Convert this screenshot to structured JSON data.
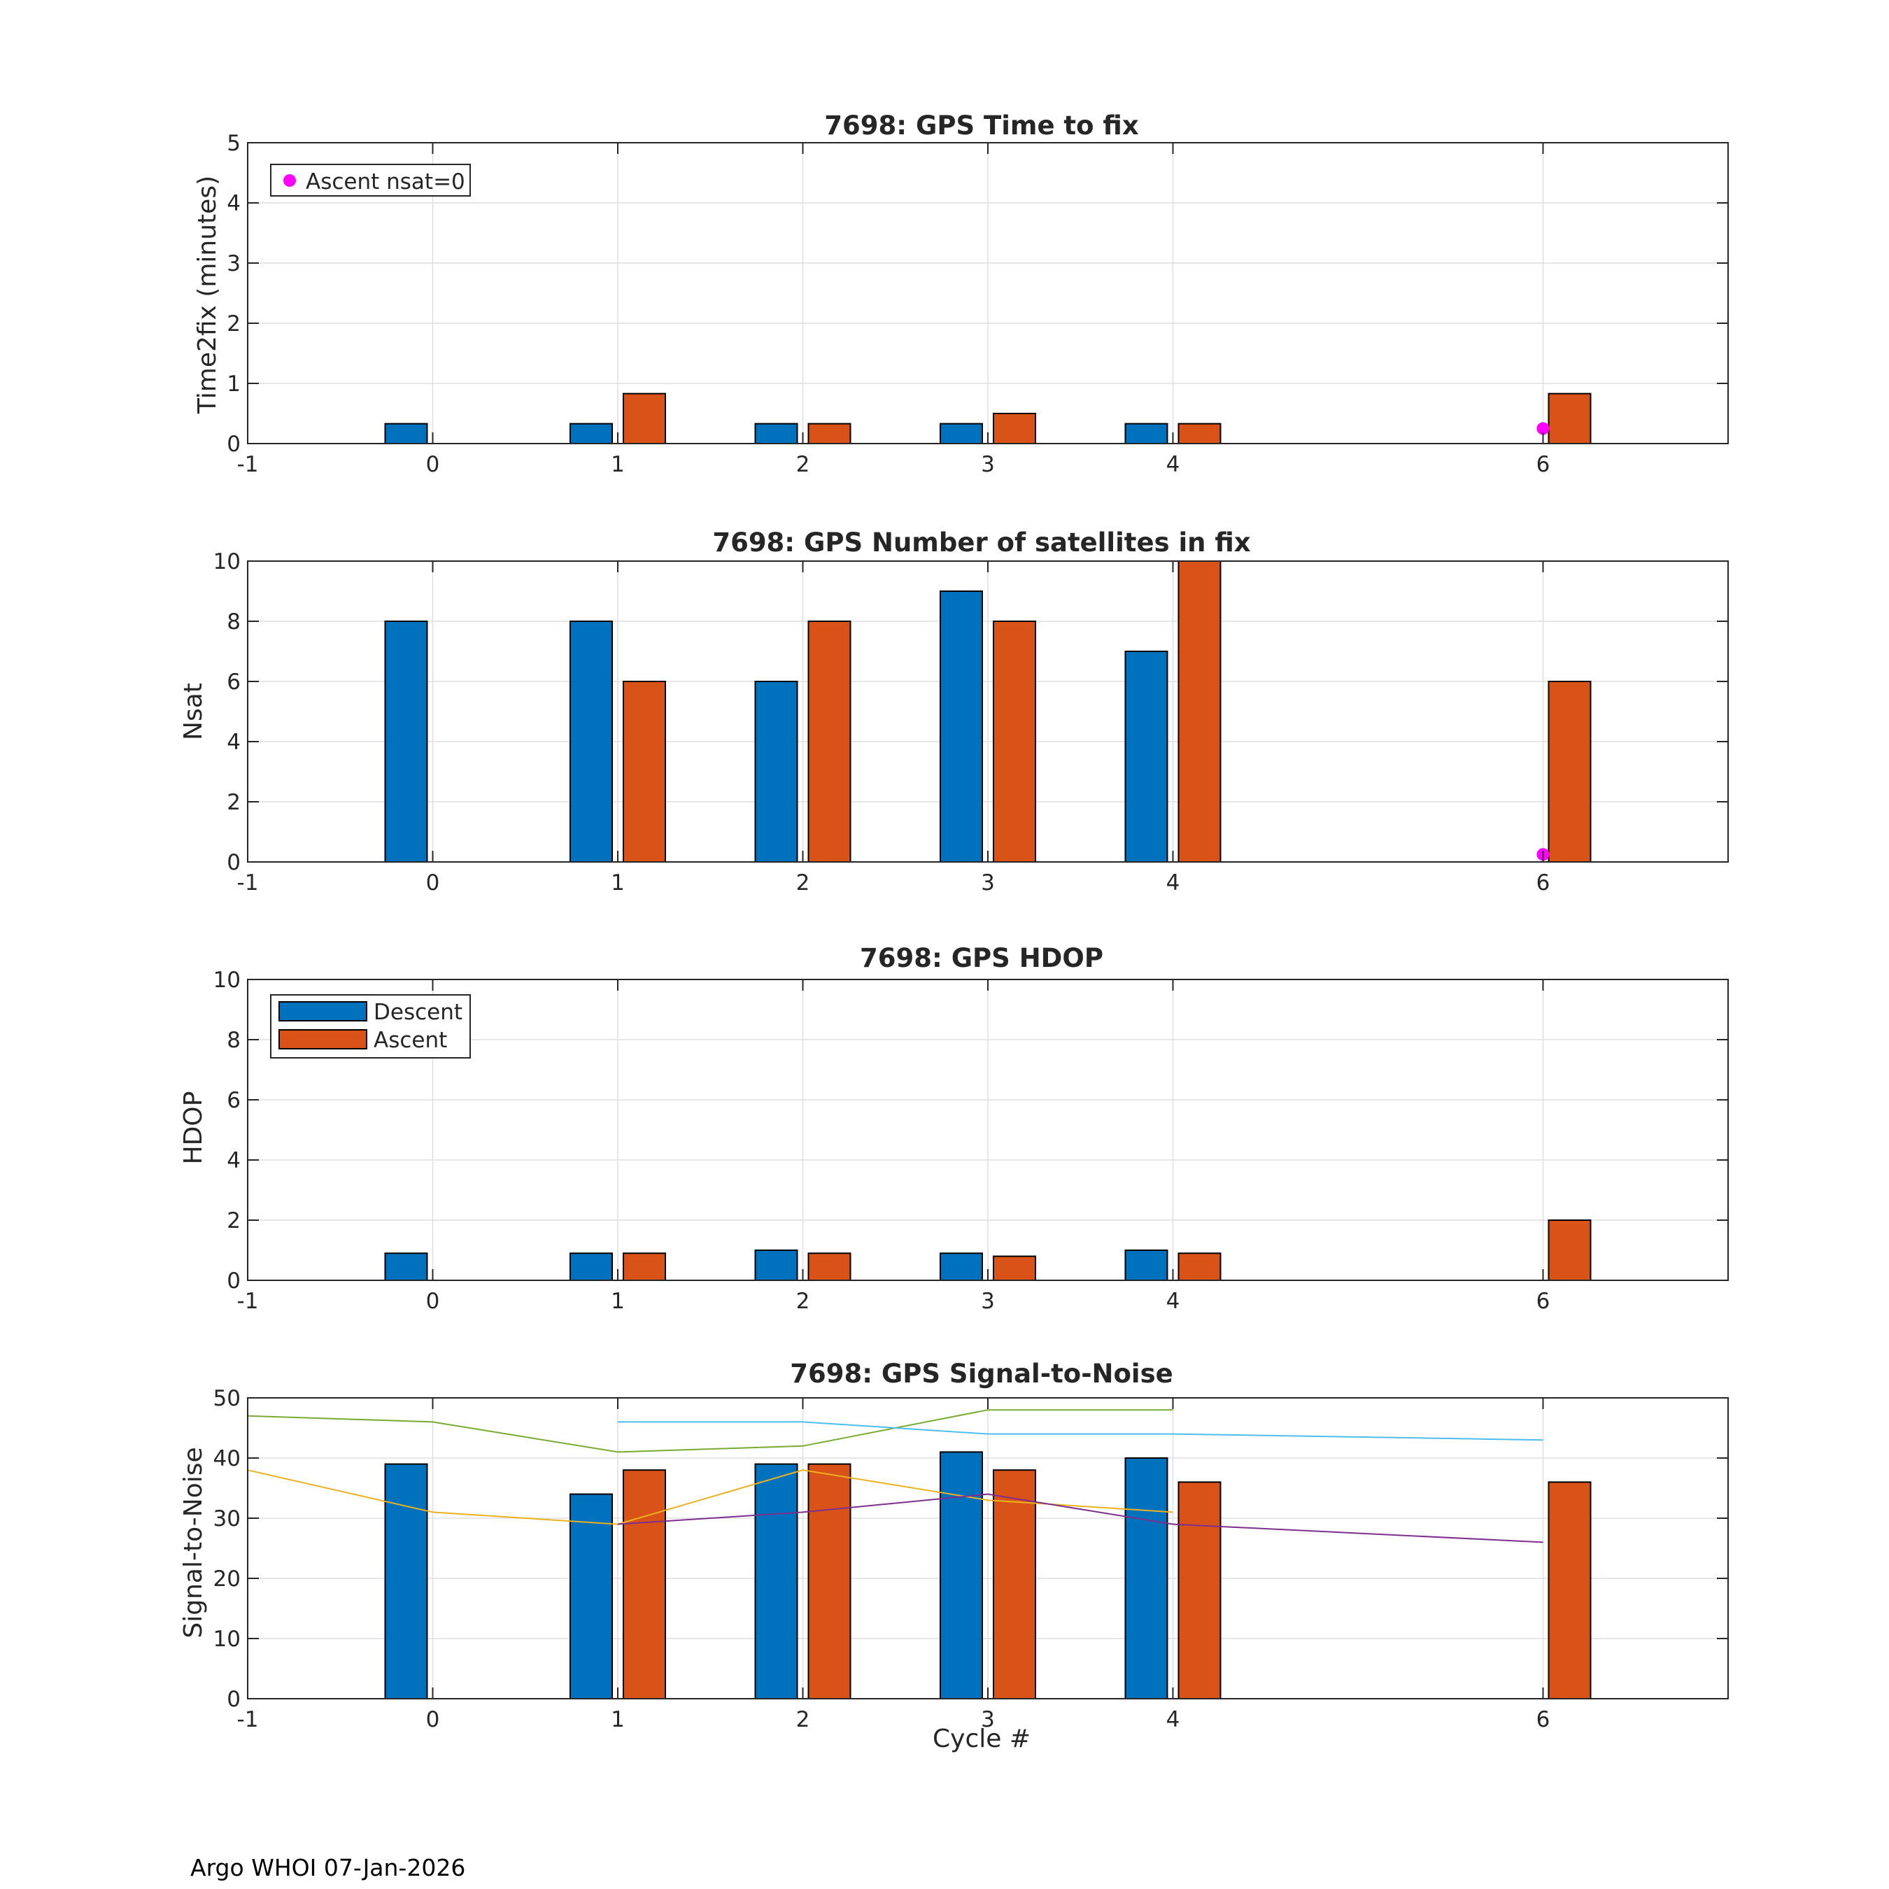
{
  "footer": "Argo WHOI 07-Jan-2026",
  "legend_labels": {
    "nsat0": "Ascent nsat=0",
    "descent": "Descent",
    "ascent": "Ascent"
  },
  "colors": {
    "descent": "#0072BD",
    "ascent": "#D95319",
    "nsat0": "#FF00FF",
    "snr_line1": "#77AC30",
    "snr_line2": "#4DBEEE",
    "snr_line3": "#EDB120",
    "snr_line4": "#7E2F8E"
  },
  "chart_data": [
    {
      "type": "bar",
      "title": "7698: GPS Time to fix",
      "xlabel": "",
      "ylabel": "Time2fix (minutes)",
      "xlim": [
        -1,
        7
      ],
      "ylim": [
        0,
        5
      ],
      "xticks": [
        "-1",
        "0",
        "1",
        "2",
        "3",
        "4",
        "6"
      ],
      "yticks": [
        "0",
        "1",
        "2",
        "3",
        "4",
        "5"
      ],
      "grid": true,
      "x": [
        0,
        1,
        2,
        3,
        4,
        6
      ],
      "series": [
        {
          "name": "Descent",
          "values": [
            0.33,
            0.33,
            0.33,
            0.33,
            0.33,
            null
          ]
        },
        {
          "name": "Ascent",
          "values": [
            null,
            0.83,
            0.33,
            0.5,
            0.33,
            0.83
          ]
        }
      ],
      "markers": [
        {
          "name": "Ascent nsat=0",
          "x": 6,
          "y": 0.25
        }
      ],
      "legend": "top-left"
    },
    {
      "type": "bar",
      "title": "7698: GPS Number of satellites in fix",
      "xlabel": "",
      "ylabel": "Nsat",
      "xlim": [
        -1,
        7
      ],
      "ylim": [
        0,
        10
      ],
      "xticks": [
        "-1",
        "0",
        "1",
        "2",
        "3",
        "4",
        "6"
      ],
      "yticks": [
        "0",
        "2",
        "4",
        "6",
        "8",
        "10"
      ],
      "grid": true,
      "x": [
        0,
        1,
        2,
        3,
        4,
        6
      ],
      "series": [
        {
          "name": "Descent",
          "values": [
            8,
            8,
            6,
            9,
            7,
            null
          ]
        },
        {
          "name": "Ascent",
          "values": [
            null,
            6,
            8,
            8,
            10,
            6
          ]
        }
      ],
      "markers": [
        {
          "name": "Ascent nsat=0",
          "x": 6,
          "y": 0.25
        }
      ]
    },
    {
      "type": "bar",
      "title": "7698: GPS HDOP",
      "xlabel": "",
      "ylabel": "HDOP",
      "xlim": [
        -1,
        7
      ],
      "ylim": [
        0,
        10
      ],
      "xticks": [
        "-1",
        "0",
        "1",
        "2",
        "3",
        "4",
        "6"
      ],
      "yticks": [
        "0",
        "2",
        "4",
        "6",
        "8",
        "10"
      ],
      "grid": true,
      "x": [
        0,
        1,
        2,
        3,
        4,
        6
      ],
      "series": [
        {
          "name": "Descent",
          "values": [
            0.9,
            0.9,
            1.0,
            0.9,
            1.0,
            null
          ]
        },
        {
          "name": "Ascent",
          "values": [
            null,
            0.9,
            0.9,
            0.8,
            0.9,
            2.0
          ]
        }
      ],
      "legend": "top-left"
    },
    {
      "type": "bar",
      "title": "7698: GPS Signal-to-Noise",
      "xlabel": "Cycle #",
      "ylabel": "Signal-to-Noise",
      "xlim": [
        -1,
        7
      ],
      "ylim": [
        0,
        50
      ],
      "xticks": [
        "-1",
        "0",
        "1",
        "2",
        "3",
        "4",
        "6"
      ],
      "yticks": [
        "0",
        "10",
        "20",
        "30",
        "40",
        "50"
      ],
      "grid": true,
      "x": [
        0,
        1,
        2,
        3,
        4,
        6
      ],
      "series": [
        {
          "name": "Descent",
          "values": [
            39,
            34,
            39,
            41,
            40,
            null
          ]
        },
        {
          "name": "Ascent",
          "values": [
            null,
            38,
            39,
            38,
            36,
            36
          ]
        }
      ],
      "lines": [
        {
          "color_key": "snr_line1",
          "x": [
            -1,
            0,
            1,
            2,
            3,
            4
          ],
          "y": [
            47,
            46,
            41,
            42,
            48,
            48
          ]
        },
        {
          "color_key": "snr_line2",
          "x": [
            1,
            2,
            3,
            4,
            6
          ],
          "y": [
            46,
            46,
            44,
            44,
            43
          ]
        },
        {
          "color_key": "snr_line3",
          "x": [
            -1,
            0,
            1,
            2,
            3,
            4
          ],
          "y": [
            38,
            31,
            29,
            38,
            33,
            31
          ]
        },
        {
          "color_key": "snr_line4",
          "x": [
            1,
            2,
            3,
            4,
            6
          ],
          "y": [
            29,
            31,
            34,
            29,
            26
          ]
        }
      ]
    }
  ]
}
